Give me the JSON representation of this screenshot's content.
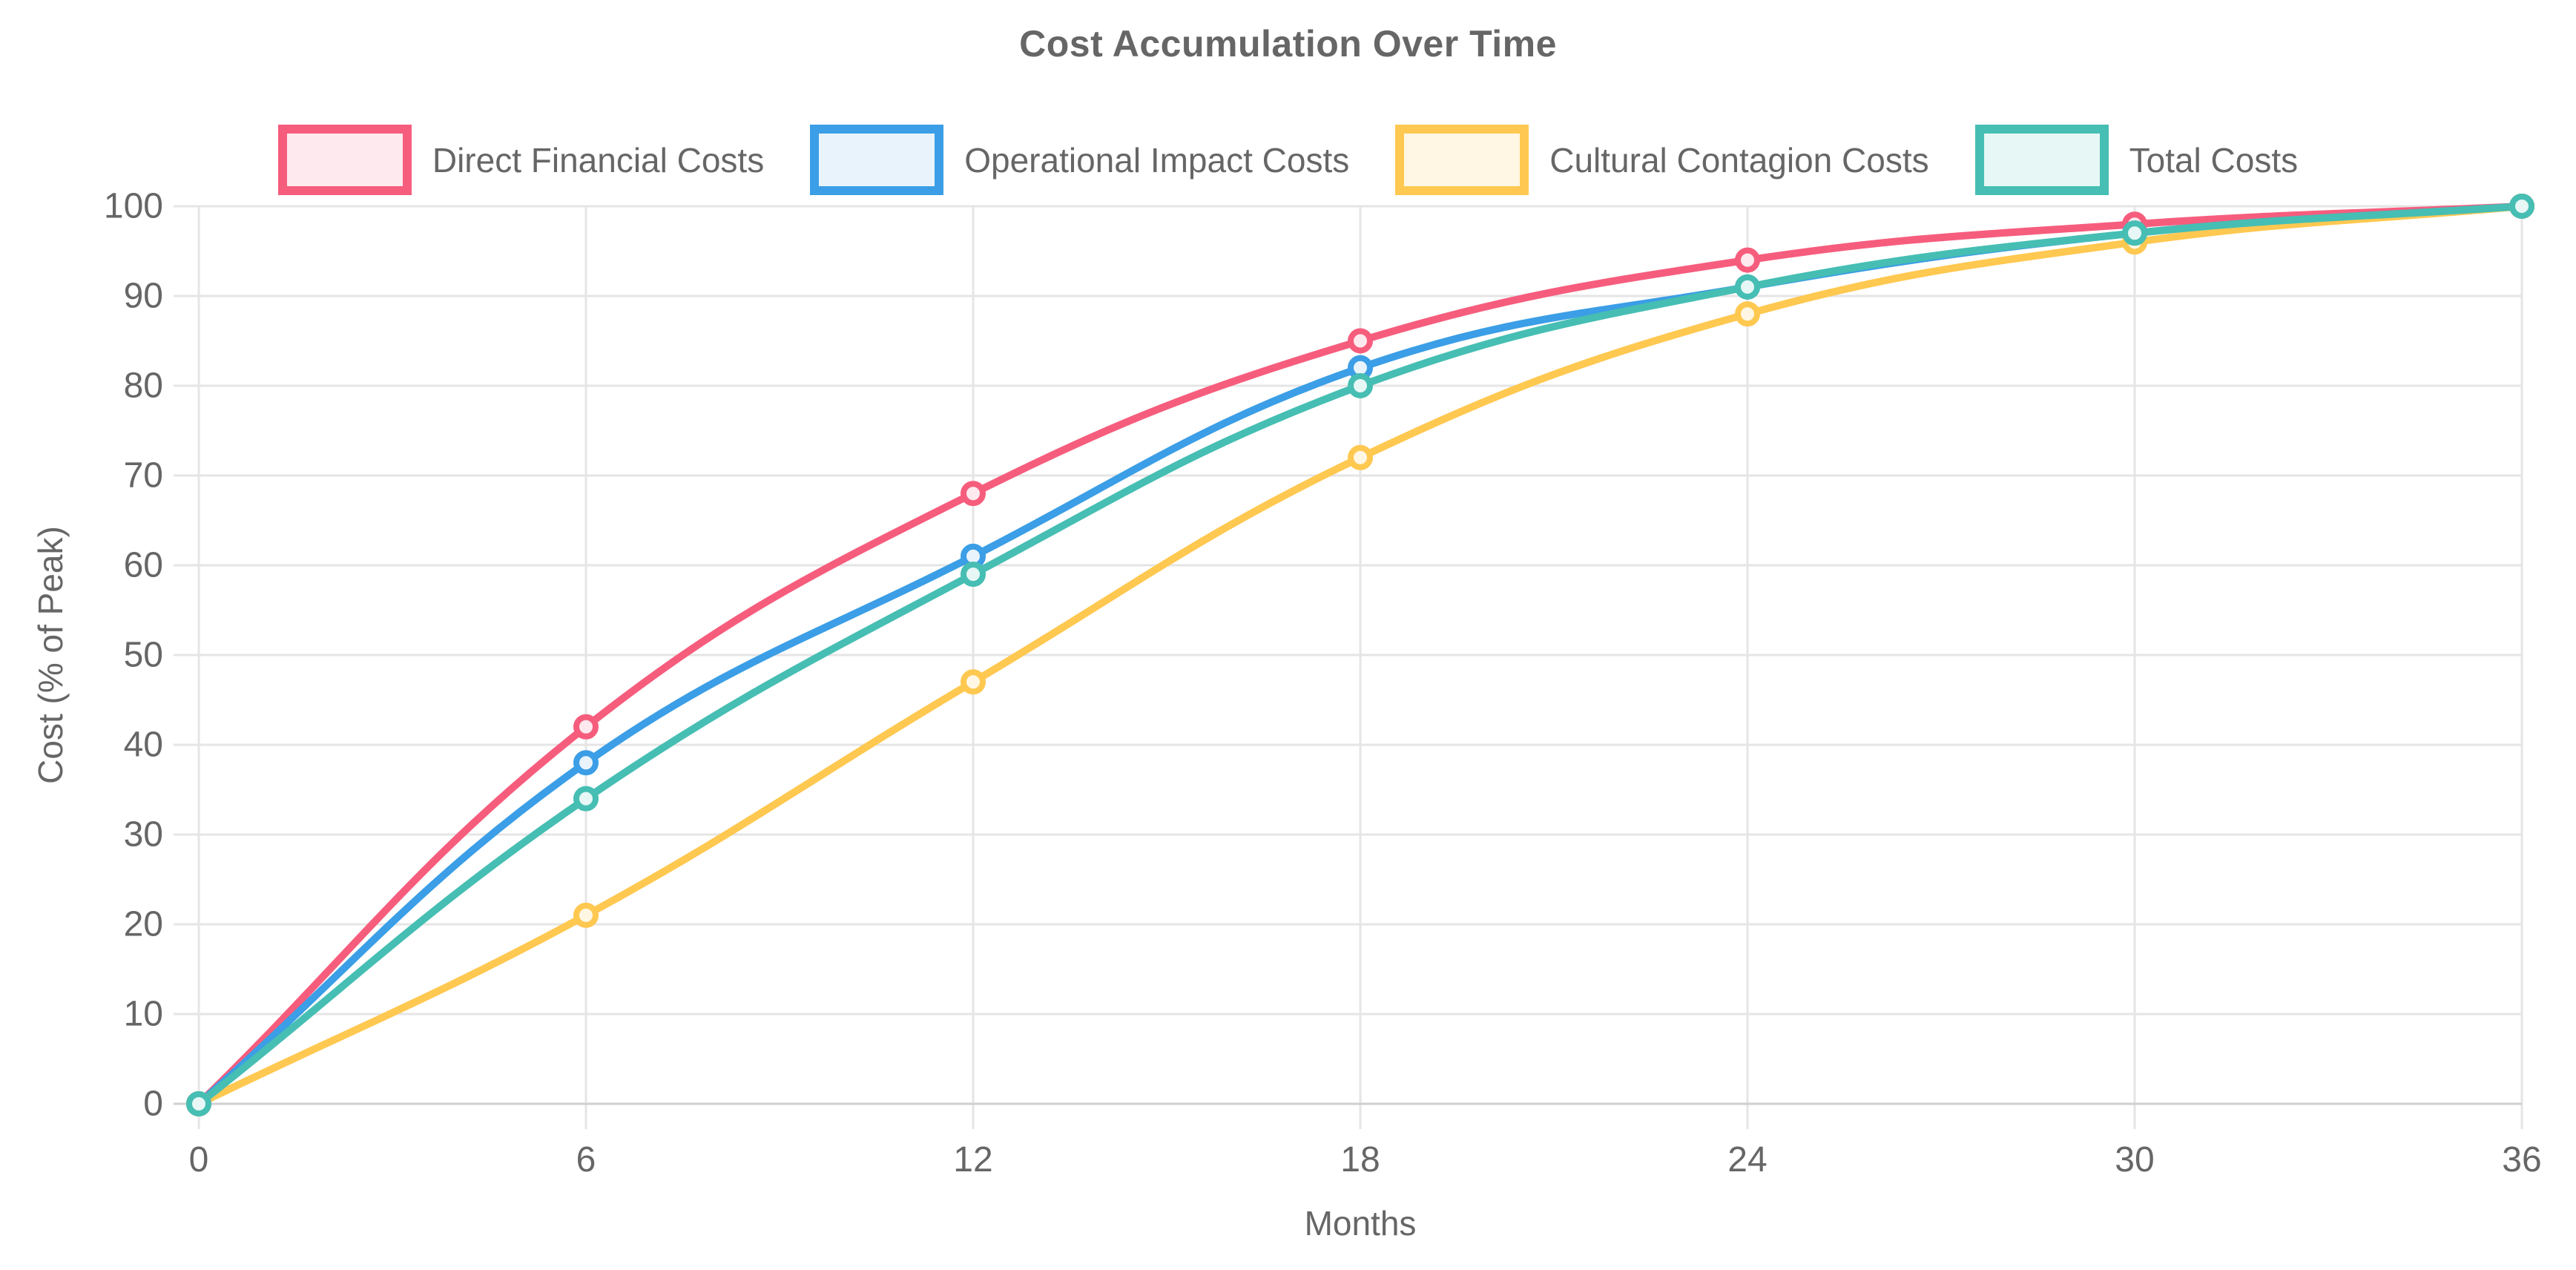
{
  "title": "Cost Accumulation Over Time",
  "chart_data": {
    "type": "line",
    "title": "Cost Accumulation Over Time",
    "xlabel": "Months",
    "ylabel": "Cost (% of Peak)",
    "x": [
      0,
      6,
      12,
      18,
      24,
      30,
      36
    ],
    "x_ticks": [
      0,
      6,
      12,
      18,
      24,
      30,
      36
    ],
    "y_ticks": [
      0,
      10,
      20,
      30,
      40,
      50,
      60,
      70,
      80,
      90,
      100
    ],
    "xlim": [
      0,
      36
    ],
    "ylim": [
      0,
      100
    ],
    "grid": true,
    "legend_position": "top",
    "curve": "smooth",
    "series": [
      {
        "name": "Direct Financial Costs",
        "color": "#F65D7D",
        "fill_tint": "#FDE9EE",
        "values": [
          0,
          42,
          68,
          85,
          94,
          98,
          100
        ]
      },
      {
        "name": "Operational Impact Costs",
        "color": "#3B9EE6",
        "fill_tint": "#E9F3FC",
        "values": [
          0,
          38,
          61,
          82,
          91,
          97,
          100
        ]
      },
      {
        "name": "Cultural Contagion Costs",
        "color": "#FFC850",
        "fill_tint": "#FFF7E4",
        "values": [
          0,
          21,
          47,
          72,
          88,
          96,
          100
        ]
      },
      {
        "name": "Total Costs",
        "color": "#46BEB3",
        "fill_tint": "#E6F7F5",
        "values": [
          0,
          34,
          59,
          80,
          91,
          97,
          100
        ]
      }
    ]
  }
}
